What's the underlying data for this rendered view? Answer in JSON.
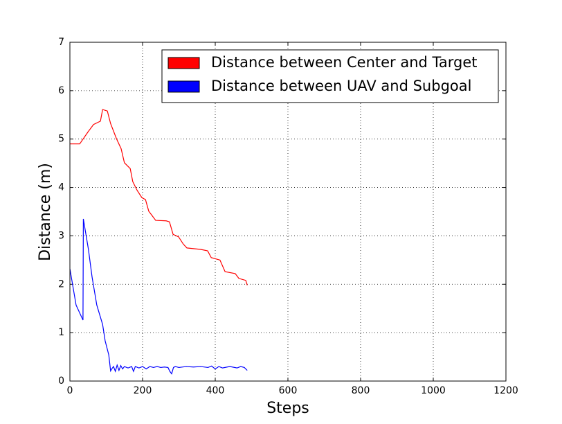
{
  "chart_data": {
    "type": "line",
    "xlabel": "Steps",
    "ylabel": "Distance (m)",
    "xlim": [
      0,
      1200
    ],
    "ylim": [
      0,
      7
    ],
    "xticks": [
      0,
      200,
      400,
      600,
      800,
      1000,
      1200
    ],
    "yticks": [
      0,
      1,
      2,
      3,
      4,
      5,
      6,
      7
    ],
    "grid": true,
    "legend": "upper right",
    "series": [
      {
        "name": "Distance between Center and Target",
        "color": "#ff0000",
        "x": [
          0,
          27,
          50,
          65,
          84,
          90,
          103,
          112,
          128,
          141,
          150,
          166,
          173,
          185,
          198,
          208,
          217,
          227,
          236,
          265,
          274,
          284,
          299,
          312,
          322,
          360,
          379,
          389,
          413,
          427,
          455,
          465,
          484,
          488
        ],
        "values": [
          4.9,
          4.9,
          5.15,
          5.3,
          5.37,
          5.61,
          5.58,
          5.32,
          5.01,
          4.8,
          4.51,
          4.39,
          4.12,
          3.94,
          3.79,
          3.75,
          3.51,
          3.41,
          3.32,
          3.31,
          3.29,
          3.03,
          2.98,
          2.83,
          2.75,
          2.72,
          2.69,
          2.55,
          2.5,
          2.26,
          2.22,
          2.12,
          2.08,
          1.98
        ]
      },
      {
        "name": "Distance between UAV and Subgoal",
        "color": "#0000ff",
        "x": [
          0,
          17,
          36,
          37,
          51,
          61,
          74,
          90,
          97,
          107,
          112,
          115,
          120,
          125,
          130,
          135,
          140,
          145,
          150,
          160,
          170,
          175,
          180,
          190,
          200,
          210,
          220,
          230,
          240,
          250,
          260,
          270,
          275,
          280,
          285,
          290,
          300,
          320,
          340,
          360,
          380,
          390,
          400,
          410,
          420,
          440,
          460,
          470,
          480,
          488
        ],
        "values": [
          2.32,
          1.57,
          1.26,
          3.35,
          2.72,
          2.15,
          1.57,
          1.17,
          0.83,
          0.54,
          0.21,
          0.25,
          0.3,
          0.2,
          0.33,
          0.22,
          0.32,
          0.25,
          0.3,
          0.27,
          0.3,
          0.2,
          0.3,
          0.27,
          0.3,
          0.25,
          0.3,
          0.28,
          0.3,
          0.28,
          0.29,
          0.28,
          0.2,
          0.15,
          0.28,
          0.3,
          0.28,
          0.3,
          0.29,
          0.3,
          0.28,
          0.31,
          0.25,
          0.3,
          0.27,
          0.3,
          0.27,
          0.3,
          0.28,
          0.22
        ]
      }
    ]
  }
}
